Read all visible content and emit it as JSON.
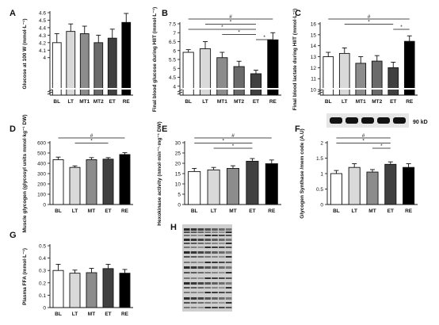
{
  "figure": {
    "blot_marker": "90 kD"
  },
  "colors": {
    "BL": "#ffffff",
    "LT": "#d9d9d9",
    "MT1": "#8c8c8c",
    "MT2": "#6a6a6a",
    "MT": "#8c8c8c",
    "ET": "#404040",
    "RE": "#000000"
  },
  "chart_data": [
    {
      "panel": "A",
      "type": "bar",
      "ylabel": "Glucose at 100 W (mmol·L⁻¹)",
      "categories": [
        "BL",
        "LT",
        "MT1",
        "MT2",
        "ET",
        "RE"
      ],
      "values": [
        4.2,
        4.35,
        4.32,
        4.2,
        4.26,
        4.47
      ],
      "errors": [
        0.12,
        0.1,
        0.1,
        0.1,
        0.12,
        0.12
      ],
      "ylim": [
        3.5,
        4.6
      ],
      "ticks": [
        4.0,
        4.1,
        4.2,
        4.3,
        4.4,
        4.5,
        4.6
      ],
      "axis_break": true,
      "brackets": []
    },
    {
      "panel": "B",
      "type": "bar",
      "ylabel": "Final blood glucose during HIIT (mmol·L⁻¹)",
      "categories": [
        "BL",
        "LT",
        "MT1",
        "MT2",
        "ET",
        "RE"
      ],
      "values": [
        5.9,
        6.1,
        5.6,
        5.1,
        4.7,
        6.6
      ],
      "errors": [
        0.15,
        0.4,
        0.3,
        0.3,
        0.2,
        0.4
      ],
      "ylim": [
        3.5,
        7.5
      ],
      "ticks": [
        4.0,
        4.5,
        5.0,
        5.5,
        6.0,
        6.5,
        7.0,
        7.5
      ],
      "axis_break": true,
      "brackets": [
        {
          "from": 0,
          "to": 5,
          "label": "#"
        },
        {
          "from": 1,
          "to": 4,
          "label": "*"
        },
        {
          "from": 0,
          "to": 4,
          "label": "*"
        },
        {
          "from": 2,
          "to": 4,
          "label": "*"
        },
        {
          "from": 4,
          "to": 5,
          "label": "*"
        }
      ]
    },
    {
      "panel": "C",
      "type": "bar",
      "ylabel": "Final blood lactate during HIIT (mmol·L⁻¹)",
      "categories": [
        "BL",
        "LT",
        "MT1",
        "MT2",
        "ET",
        "RE"
      ],
      "values": [
        13.0,
        13.3,
        12.4,
        12.6,
        12.0,
        14.4
      ],
      "errors": [
        0.4,
        0.5,
        0.6,
        0.5,
        0.5,
        0.5
      ],
      "ylim": [
        9.5,
        16
      ],
      "ticks": [
        10,
        11,
        12,
        13,
        14,
        15,
        16
      ],
      "axis_break": true,
      "brackets": [
        {
          "from": 0,
          "to": 5,
          "label": "#"
        },
        {
          "from": 1,
          "to": 4,
          "label": "*"
        },
        {
          "from": 4,
          "to": 5,
          "label": "*"
        }
      ]
    },
    {
      "panel": "D",
      "type": "bar",
      "ylabel": "Muscle glycogen (glycosyl units mmol·kg⁻¹ DW)",
      "categories": [
        "BL",
        "LT",
        "MT",
        "ET",
        "RE"
      ],
      "values": [
        435,
        360,
        435,
        440,
        485
      ],
      "errors": [
        25,
        15,
        20,
        15,
        18
      ],
      "ylim": [
        0,
        600
      ],
      "ticks": [
        0,
        100,
        200,
        300,
        400,
        500,
        600
      ],
      "axis_break": false,
      "brackets": [
        {
          "from": 0,
          "to": 4,
          "label": "#"
        },
        {
          "from": 1,
          "to": 3,
          "label": "*"
        }
      ]
    },
    {
      "panel": "E",
      "type": "bar",
      "ylabel": "Hexokinase activity (nmol·min⁻¹·mg⁻¹ DW)",
      "categories": [
        "BL",
        "LT",
        "MT",
        "ET",
        "RE"
      ],
      "values": [
        16,
        16.8,
        17.5,
        21,
        19.8
      ],
      "errors": [
        1.5,
        1.2,
        1.3,
        1.3,
        1.8
      ],
      "ylim": [
        0,
        30
      ],
      "ticks": [
        0,
        5,
        10,
        15,
        20,
        25,
        30
      ],
      "axis_break": false,
      "brackets": [
        {
          "from": 0,
          "to": 4,
          "label": "#"
        },
        {
          "from": 0,
          "to": 3,
          "label": "*"
        },
        {
          "from": 1,
          "to": 3,
          "label": "*"
        }
      ]
    },
    {
      "panel": "F",
      "type": "bar",
      "ylabel": "Glycogen Synthase /mem code (A.U)",
      "categories": [
        "BL",
        "LT",
        "MT",
        "ET",
        "RE"
      ],
      "values": [
        1.0,
        1.2,
        1.05,
        1.3,
        1.2
      ],
      "errors": [
        0.1,
        0.12,
        0.08,
        0.08,
        0.12
      ],
      "ylim": [
        0,
        2
      ],
      "ticks": [
        0,
        0.5,
        1.0,
        1.5,
        2.0
      ],
      "axis_break": false,
      "brackets": [
        {
          "from": 0,
          "to": 3,
          "label": "#"
        },
        {
          "from": 0,
          "to": 3,
          "label": "*"
        },
        {
          "from": 2,
          "to": 3,
          "label": "*"
        }
      ]
    },
    {
      "panel": "G",
      "type": "bar",
      "ylabel": "Plasma FFA (mmol·L⁻¹)",
      "categories": [
        "BL",
        "LT",
        "MT",
        "ET",
        "RE"
      ],
      "values": [
        0.3,
        0.278,
        0.282,
        0.315,
        0.278
      ],
      "errors": [
        0.05,
        0.025,
        0.035,
        0.035,
        0.03
      ],
      "ylim": [
        0,
        0.5
      ],
      "ticks": [
        0,
        0.1,
        0.2,
        0.3,
        0.4,
        0.5
      ],
      "axis_break": false,
      "brackets": []
    }
  ]
}
